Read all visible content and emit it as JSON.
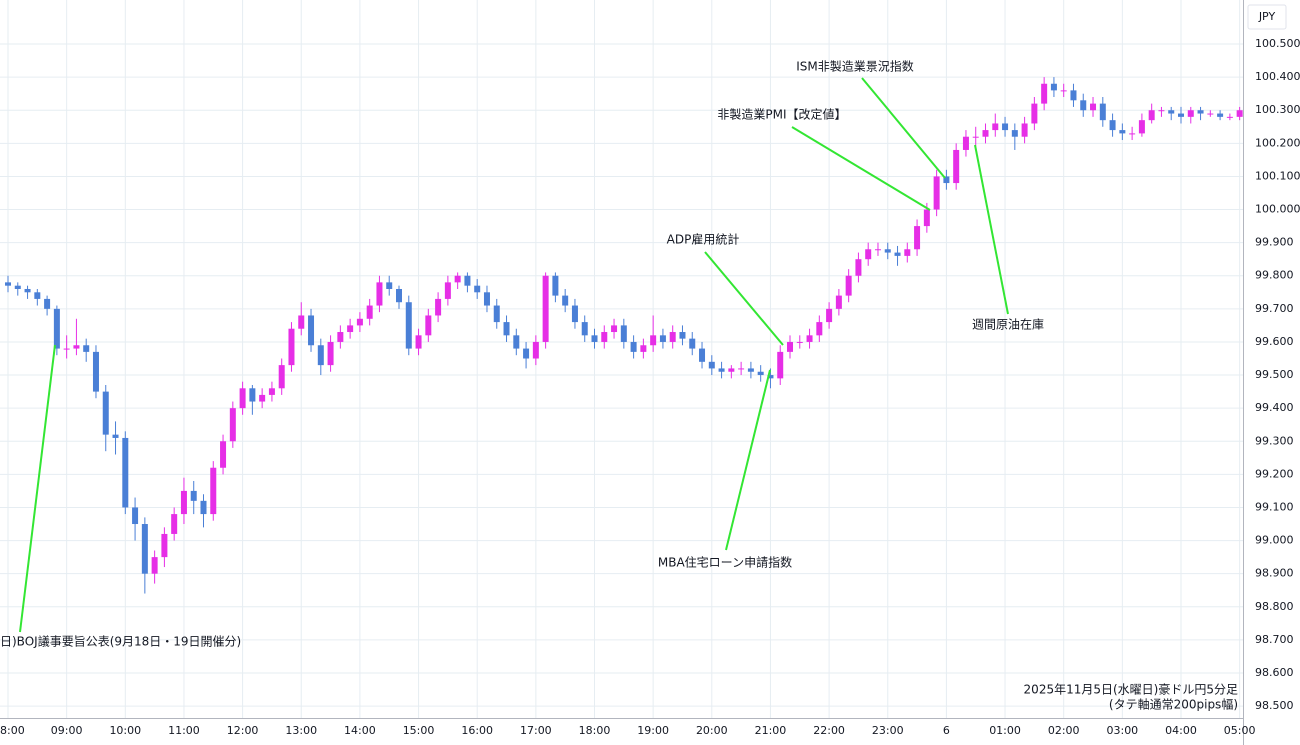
{
  "chart_data": {
    "type": "candlestick",
    "currency": "JPY",
    "note": [
      "2025年11月5日(水曜日)豪ドル円5分足",
      "(タテ軸通常200pips幅)"
    ],
    "annotations": [
      "日)BOJ議事要旨公表(9月18日・19日開催分)",
      "MBA住宅ローン申請指数",
      "ADP雇用統計",
      "非製造業PMI【改定値】",
      "ISM非製造業景況指数",
      "週間原油在庫"
    ],
    "up_color": "#e62ee6",
    "down_color": "#4a7fd6",
    "grid": true,
    "ylim": [
      98.464,
      100.633
    ],
    "yticks": [
      {
        "value": 100.5,
        "label": "100.500"
      },
      {
        "value": 100.4,
        "label": "100.400"
      },
      {
        "value": 100.3,
        "label": "100.300"
      },
      {
        "value": 100.2,
        "label": "100.200"
      },
      {
        "value": 100.1,
        "label": "100.100"
      },
      {
        "value": 100,
        "label": "100.000"
      },
      {
        "value": 99.9,
        "label": "99.900"
      },
      {
        "value": 99.8,
        "label": "99.800"
      },
      {
        "value": 99.7,
        "label": "99.700"
      },
      {
        "value": 99.6,
        "label": "99.600"
      },
      {
        "value": 99.5,
        "label": "99.500"
      },
      {
        "value": 99.4,
        "label": "99.400"
      },
      {
        "value": 99.3,
        "label": "99.300"
      },
      {
        "value": 99.2,
        "label": "99.200"
      },
      {
        "value": 99.1,
        "label": "99.100"
      },
      {
        "value": 99,
        "label": "99.000"
      },
      {
        "value": 98.9,
        "label": "98.900"
      },
      {
        "value": 98.8,
        "label": "98.800"
      },
      {
        "value": 98.7,
        "label": "98.700"
      },
      {
        "value": 98.6,
        "label": "98.600"
      },
      {
        "value": 98.5,
        "label": "98.500"
      }
    ],
    "xticks": [
      {
        "value": "08:00",
        "label": "8:00"
      },
      "09:00",
      "10:00",
      "11:00",
      "12:00",
      "13:00",
      "14:00",
      "15:00",
      "16:00",
      "17:00",
      "18:00",
      "19:00",
      "20:00",
      "21:00",
      "22:00",
      "23:00",
      {
        "value": "00:00",
        "label": "6"
      },
      "01:00",
      "02:00",
      "03:00",
      "04:00",
      "05:00"
    ],
    "x": [
      "08:00",
      "08:10",
      "08:20",
      "08:30",
      "08:40",
      "08:50",
      "09:00",
      "09:10",
      "09:20",
      "09:30",
      "09:40",
      "09:50",
      "10:00",
      "10:10",
      "10:20",
      "10:30",
      "10:40",
      "10:50",
      "11:00",
      "11:10",
      "11:20",
      "11:30",
      "11:40",
      "11:50",
      "12:00",
      "12:10",
      "12:20",
      "12:30",
      "12:40",
      "12:50",
      "13:00",
      "13:10",
      "13:20",
      "13:30",
      "13:40",
      "13:50",
      "14:00",
      "14:10",
      "14:20",
      "14:30",
      "14:40",
      "14:50",
      "15:00",
      "15:10",
      "15:20",
      "15:30",
      "15:40",
      "15:50",
      "16:00",
      "16:10",
      "16:20",
      "16:30",
      "16:40",
      "16:50",
      "17:00",
      "17:10",
      "17:20",
      "17:30",
      "17:40",
      "17:50",
      "18:00",
      "18:10",
      "18:20",
      "18:30",
      "18:40",
      "18:50",
      "19:00",
      "19:10",
      "19:20",
      "19:30",
      "19:40",
      "19:50",
      "20:00",
      "20:10",
      "20:20",
      "20:30",
      "20:40",
      "20:50",
      "21:00",
      "21:10",
      "21:20",
      "21:30",
      "21:40",
      "21:50",
      "22:00",
      "22:10",
      "22:20",
      "22:30",
      "22:40",
      "22:50",
      "23:00",
      "23:10",
      "23:20",
      "23:30",
      "23:40",
      "23:50",
      "00:00",
      "00:10",
      "00:20",
      "00:30",
      "00:40",
      "00:50",
      "01:00",
      "01:10",
      "01:20",
      "01:30",
      "01:40",
      "01:50",
      "02:00",
      "02:10",
      "02:20",
      "02:30",
      "02:40",
      "02:50",
      "03:00",
      "03:10",
      "03:20",
      "03:30",
      "03:40",
      "03:50",
      "04:00",
      "04:10",
      "04:20",
      "04:30",
      "04:40",
      "04:50",
      "05:00"
    ],
    "open": [
      99.78,
      99.77,
      99.76,
      99.75,
      99.73,
      99.7,
      99.58,
      99.58,
      99.59,
      99.57,
      99.45,
      99.32,
      99.31,
      99.1,
      99.05,
      98.9,
      98.95,
      99.02,
      99.08,
      99.15,
      99.12,
      99.08,
      99.22,
      99.3,
      99.4,
      99.46,
      99.42,
      99.44,
      99.46,
      99.53,
      99.64,
      99.68,
      99.59,
      99.53,
      99.6,
      99.63,
      99.65,
      99.67,
      99.71,
      99.78,
      99.76,
      99.72,
      99.58,
      99.62,
      99.68,
      99.73,
      99.78,
      99.8,
      99.77,
      99.75,
      99.71,
      99.66,
      99.62,
      99.58,
      99.55,
      99.6,
      99.8,
      99.74,
      99.71,
      99.66,
      99.62,
      99.6,
      99.63,
      99.65,
      99.6,
      99.57,
      99.59,
      99.62,
      99.6,
      99.63,
      99.61,
      99.58,
      99.54,
      99.52,
      99.51,
      99.52,
      99.52,
      99.51,
      99.5,
      99.49,
      99.57,
      99.6,
      99.6,
      99.62,
      99.66,
      99.7,
      99.74,
      99.8,
      99.85,
      99.88,
      99.88,
      99.87,
      99.86,
      99.88,
      99.95,
      100.0,
      100.1,
      100.08,
      100.18,
      100.22,
      100.22,
      100.24,
      100.26,
      100.24,
      100.22,
      100.26,
      100.32,
      100.38,
      100.36,
      100.36,
      100.33,
      100.3,
      100.32,
      100.27,
      100.24,
      100.23,
      100.23,
      100.27,
      100.3,
      100.3,
      100.29,
      100.28,
      100.3,
      100.29,
      100.29,
      100.28,
      100.28
    ],
    "high": [
      99.8,
      99.78,
      99.77,
      99.76,
      99.74,
      99.71,
      99.62,
      99.67,
      99.61,
      99.59,
      99.47,
      99.36,
      99.33,
      99.13,
      99.07,
      98.97,
      99.04,
      99.1,
      99.19,
      99.18,
      99.14,
      99.24,
      99.32,
      99.42,
      99.48,
      99.47,
      99.46,
      99.48,
      99.55,
      99.66,
      99.72,
      99.7,
      99.61,
      99.62,
      99.65,
      99.67,
      99.69,
      99.73,
      99.8,
      99.8,
      99.77,
      99.74,
      99.64,
      99.7,
      99.75,
      99.8,
      99.81,
      99.81,
      99.79,
      99.77,
      99.73,
      99.68,
      99.64,
      99.6,
      99.62,
      99.81,
      99.81,
      99.76,
      99.73,
      99.68,
      99.64,
      99.65,
      99.67,
      99.67,
      99.62,
      99.61,
      99.68,
      99.64,
      99.65,
      99.65,
      99.63,
      99.6,
      99.56,
      99.54,
      99.53,
      99.54,
      99.54,
      99.53,
      99.52,
      99.59,
      99.62,
      99.62,
      99.64,
      99.68,
      99.72,
      99.76,
      99.82,
      99.87,
      99.9,
      99.9,
      99.9,
      99.89,
      99.9,
      99.97,
      100.02,
      100.12,
      100.12,
      100.2,
      100.24,
      100.25,
      100.26,
      100.29,
      100.28,
      100.26,
      100.28,
      100.34,
      100.4,
      100.4,
      100.38,
      100.38,
      100.35,
      100.34,
      100.34,
      100.29,
      100.26,
      100.25,
      100.29,
      100.32,
      100.31,
      100.31,
      100.31,
      100.31,
      100.31,
      100.3,
      100.3,
      100.29,
      100.31
    ],
    "low": [
      99.75,
      99.74,
      99.73,
      99.71,
      99.68,
      99.56,
      99.55,
      99.56,
      99.54,
      99.43,
      99.27,
      99.26,
      99.08,
      99.0,
      98.84,
      98.87,
      98.92,
      99.0,
      99.05,
      99.08,
      99.04,
      99.06,
      99.2,
      99.28,
      99.38,
      99.38,
      99.4,
      99.42,
      99.44,
      99.51,
      99.62,
      99.57,
      99.5,
      99.51,
      99.58,
      99.61,
      99.63,
      99.65,
      99.69,
      99.74,
      99.7,
      99.56,
      99.56,
      99.6,
      99.66,
      99.71,
      99.76,
      99.75,
      99.73,
      99.69,
      99.64,
      99.6,
      99.56,
      99.52,
      99.53,
      99.58,
      99.72,
      99.69,
      99.64,
      99.6,
      99.58,
      99.58,
      99.61,
      99.58,
      99.55,
      99.55,
      99.57,
      99.58,
      99.58,
      99.59,
      99.56,
      99.52,
      99.5,
      99.49,
      99.49,
      99.5,
      99.49,
      99.48,
      99.46,
      99.47,
      99.55,
      99.58,
      99.58,
      99.6,
      99.64,
      99.68,
      99.72,
      99.78,
      99.83,
      99.86,
      99.85,
      99.83,
      99.84,
      99.86,
      99.93,
      99.98,
      100.06,
      100.06,
      100.16,
      100.19,
      100.2,
      100.22,
      100.22,
      100.18,
      100.2,
      100.24,
      100.3,
      100.34,
      100.34,
      100.31,
      100.28,
      100.28,
      100.25,
      100.22,
      100.21,
      100.21,
      100.22,
      100.26,
      100.28,
      100.27,
      100.26,
      100.26,
      100.27,
      100.28,
      100.27,
      100.27,
      100.27
    ],
    "close": [
      99.77,
      99.76,
      99.75,
      99.73,
      99.7,
      99.58,
      99.58,
      99.59,
      99.57,
      99.45,
      99.32,
      99.31,
      99.1,
      99.05,
      98.9,
      98.95,
      99.02,
      99.08,
      99.15,
      99.12,
      99.08,
      99.22,
      99.3,
      99.4,
      99.46,
      99.42,
      99.44,
      99.46,
      99.53,
      99.64,
      99.68,
      99.59,
      99.53,
      99.6,
      99.63,
      99.65,
      99.67,
      99.71,
      99.78,
      99.76,
      99.72,
      99.58,
      99.62,
      99.68,
      99.73,
      99.78,
      99.8,
      99.77,
      99.75,
      99.71,
      99.66,
      99.62,
      99.58,
      99.55,
      99.6,
      99.8,
      99.74,
      99.71,
      99.66,
      99.62,
      99.6,
      99.63,
      99.65,
      99.6,
      99.57,
      99.59,
      99.62,
      99.6,
      99.63,
      99.61,
      99.58,
      99.54,
      99.52,
      99.51,
      99.52,
      99.52,
      99.51,
      99.5,
      99.49,
      99.57,
      99.6,
      99.6,
      99.62,
      99.66,
      99.7,
      99.74,
      99.8,
      99.85,
      99.88,
      99.88,
      99.87,
      99.86,
      99.88,
      99.95,
      100.0,
      100.1,
      100.08,
      100.18,
      100.22,
      100.22,
      100.24,
      100.26,
      100.24,
      100.22,
      100.26,
      100.32,
      100.38,
      100.36,
      100.36,
      100.33,
      100.3,
      100.32,
      100.27,
      100.24,
      100.23,
      100.23,
      100.27,
      100.3,
      100.3,
      100.29,
      100.28,
      100.3,
      100.29,
      100.29,
      100.28,
      100.28,
      100.3
    ]
  }
}
